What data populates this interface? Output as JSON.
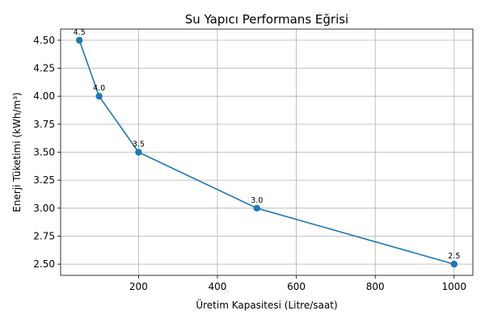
{
  "chart_data": {
    "type": "line",
    "title": "Su Yapıcı Performans Eğrisi",
    "xlabel": "Üretim Kapasitesi (Litre/saat)",
    "ylabel": "Enerji Tüketimi (kWh/m³)",
    "series": [
      {
        "x": [
          50,
          100,
          200,
          500,
          1000
        ],
        "values": [
          4.5,
          4.0,
          3.5,
          3.0,
          2.5
        ],
        "data_labels": [
          "4.5",
          "4.0",
          "3.5",
          "3.0",
          "2.5"
        ],
        "color": "#1f77b4",
        "marker": "circle"
      }
    ],
    "xlim": [
      2.5,
      1047.5
    ],
    "ylim": [
      2.4,
      4.6
    ],
    "x_ticks": [
      200,
      400,
      600,
      800,
      1000
    ],
    "x_tick_labels": [
      "200",
      "400",
      "600",
      "800",
      "1000"
    ],
    "y_ticks": [
      2.5,
      2.75,
      3.0,
      3.25,
      3.5,
      3.75,
      4.0,
      4.25,
      4.5
    ],
    "y_tick_labels": [
      "2.50",
      "2.75",
      "3.00",
      "3.25",
      "3.50",
      "3.75",
      "4.00",
      "4.25",
      "4.50"
    ],
    "grid": true,
    "legend": "none"
  }
}
